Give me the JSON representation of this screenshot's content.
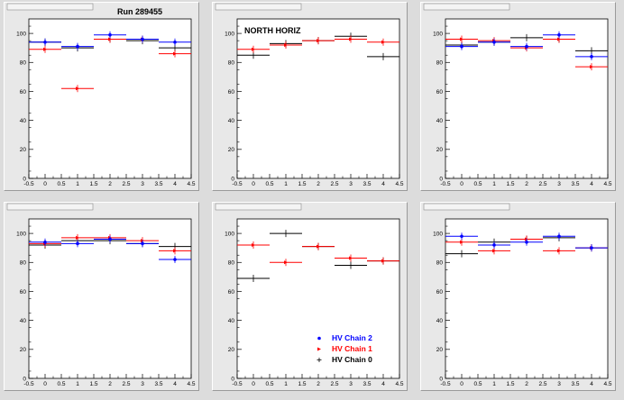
{
  "window": {
    "run_label": "Run 289455",
    "region_label": "NORTH HORIZ"
  },
  "colors": {
    "pad_bg": "#e8e8e8",
    "frame_bg": "#ffffff",
    "chain2": "#0000ff",
    "chain1": "#ff0000",
    "chain0": "#000000"
  },
  "chart_data": [
    {
      "type": "scatter",
      "title": "",
      "annotation": "Run 289455",
      "xlim": [
        -0.5,
        4.5
      ],
      "ylim": [
        0,
        110
      ],
      "x_ticks": [
        "-0.5",
        "0",
        "0.5",
        "1",
        "1.5",
        "2",
        "2.5",
        "3",
        "3.5",
        "4",
        "4.5"
      ],
      "y_ticks": [
        "0",
        "20",
        "40",
        "60",
        "80",
        "100"
      ],
      "x": [
        0,
        1,
        2,
        3,
        4
      ],
      "series": [
        {
          "name": "HV Chain 2",
          "values": [
            94,
            91,
            99,
            96,
            94
          ]
        },
        {
          "name": "HV Chain 1",
          "values": [
            89,
            62,
            96,
            96,
            86
          ]
        },
        {
          "name": "HV Chain 0",
          "values": [
            94,
            90,
            96,
            95,
            90
          ]
        }
      ]
    },
    {
      "type": "scatter",
      "title": "",
      "annotation": "NORTH HORIZ",
      "xlim": [
        -0.5,
        4.5
      ],
      "ylim": [
        0,
        110
      ],
      "x_ticks": [
        "-0.5",
        "0",
        "0.5",
        "1",
        "1.5",
        "2",
        "2.5",
        "3",
        "3.5",
        "4",
        "4.5"
      ],
      "y_ticks": [
        "0",
        "20",
        "40",
        "60",
        "80",
        "100"
      ],
      "x": [
        0,
        1,
        2,
        3,
        4
      ],
      "series": [
        {
          "name": "HV Chain 2",
          "values": [
            null,
            null,
            null,
            null,
            null
          ]
        },
        {
          "name": "HV Chain 1",
          "values": [
            89,
            92,
            95,
            96,
            94
          ]
        },
        {
          "name": "HV Chain 0",
          "values": [
            85,
            93,
            95,
            98,
            84
          ]
        }
      ]
    },
    {
      "type": "scatter",
      "title": "",
      "xlim": [
        -0.5,
        4.5
      ],
      "ylim": [
        0,
        110
      ],
      "x_ticks": [
        "-0.5",
        "0",
        "0.5",
        "1",
        "1.5",
        "2",
        "2.5",
        "3",
        "3.5",
        "4",
        "4.5"
      ],
      "y_ticks": [
        "0",
        "20",
        "40",
        "60",
        "80",
        "100"
      ],
      "x": [
        0,
        1,
        2,
        3,
        4
      ],
      "series": [
        {
          "name": "HV Chain 2",
          "values": [
            91,
            94,
            91,
            99,
            84
          ]
        },
        {
          "name": "HV Chain 1",
          "values": [
            96,
            95,
            90,
            96,
            77
          ]
        },
        {
          "name": "HV Chain 0",
          "values": [
            92,
            94,
            97,
            96,
            88
          ]
        }
      ]
    },
    {
      "type": "scatter",
      "title": "",
      "xlim": [
        -0.5,
        4.5
      ],
      "ylim": [
        0,
        110
      ],
      "x_ticks": [
        "-0.5",
        "0",
        "0.5",
        "1",
        "1.5",
        "2",
        "2.5",
        "3",
        "3.5",
        "4",
        "4.5"
      ],
      "y_ticks": [
        "0",
        "20",
        "40",
        "60",
        "80",
        "100"
      ],
      "x": [
        0,
        1,
        2,
        3,
        4
      ],
      "series": [
        {
          "name": "HV Chain 2",
          "values": [
            94,
            93,
            96,
            93,
            82
          ]
        },
        {
          "name": "HV Chain 1",
          "values": [
            93,
            97,
            97,
            95,
            88
          ]
        },
        {
          "name": "HV Chain 0",
          "values": [
            92,
            95,
            95,
            93,
            91
          ]
        }
      ]
    },
    {
      "type": "scatter",
      "title": "",
      "xlim": [
        -0.5,
        4.5
      ],
      "ylim": [
        0,
        110
      ],
      "x_ticks": [
        "-0.5",
        "0",
        "0.5",
        "1",
        "1.5",
        "2",
        "2.5",
        "3",
        "3.5",
        "4",
        "4.5"
      ],
      "y_ticks": [
        "0",
        "20",
        "40",
        "60",
        "80",
        "100"
      ],
      "x": [
        0,
        1,
        2,
        3,
        4
      ],
      "legend": [
        "HV Chain 2",
        "HV Chain 1",
        "HV Chain 0"
      ],
      "legend_position": "bottom-right",
      "series": [
        {
          "name": "HV Chain 2",
          "values": [
            null,
            null,
            null,
            null,
            null
          ]
        },
        {
          "name": "HV Chain 1",
          "values": [
            92,
            80,
            91,
            83,
            81
          ]
        },
        {
          "name": "HV Chain 0",
          "values": [
            69,
            100,
            91,
            78,
            81
          ]
        }
      ]
    },
    {
      "type": "scatter",
      "title": "",
      "xlim": [
        -0.5,
        4.5
      ],
      "ylim": [
        0,
        110
      ],
      "x_ticks": [
        "-0.5",
        "0",
        "0.5",
        "1",
        "1.5",
        "2",
        "2.5",
        "3",
        "3.5",
        "4",
        "4.5"
      ],
      "y_ticks": [
        "0",
        "20",
        "40",
        "60",
        "80",
        "100"
      ],
      "x": [
        0,
        1,
        2,
        3,
        4
      ],
      "series": [
        {
          "name": "HV Chain 2",
          "values": [
            98,
            92,
            94,
            98,
            90
          ]
        },
        {
          "name": "HV Chain 1",
          "values": [
            94,
            88,
            96,
            88,
            90
          ]
        },
        {
          "name": "HV Chain 0",
          "values": [
            86,
            94,
            96,
            97,
            90
          ]
        }
      ]
    }
  ]
}
